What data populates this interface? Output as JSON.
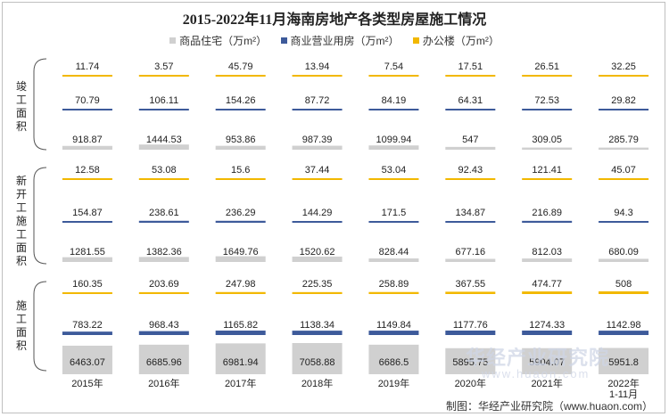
{
  "chart_data": {
    "type": "bar",
    "title": "2015-2022年11月海南房地产各类型房屋施工情况",
    "categories": [
      "2015年",
      "2016年",
      "2017年",
      "2018年",
      "2019年",
      "2020年",
      "2021年",
      "2022年 1-11月"
    ],
    "category_lines": [
      [
        "2015年"
      ],
      [
        "2016年"
      ],
      [
        "2017年"
      ],
      [
        "2018年"
      ],
      [
        "2019年"
      ],
      [
        "2020年"
      ],
      [
        "2021年"
      ],
      [
        "2022年",
        "1-11月"
      ]
    ],
    "legend": [
      {
        "name": "商品住宅（万m²）",
        "color": "#d0d0d0"
      },
      {
        "name": "商业营业用房（万m²）",
        "color": "#3d5a9a"
      },
      {
        "name": "办公楼（万m²）",
        "color": "#f2b800"
      }
    ],
    "groups": [
      {
        "label": "竣工面积",
        "label_chars": [
          "竣",
          "工",
          "面",
          "积"
        ],
        "series": [
          {
            "name": "办公楼（万m²）",
            "values": [
              11.74,
              3.57,
              45.79,
              13.94,
              7.54,
              17.51,
              26.51,
              32.25
            ]
          },
          {
            "name": "商业营业用房（万m²）",
            "values": [
              70.79,
              106.11,
              154.26,
              87.72,
              84.19,
              64.31,
              72.53,
              29.82
            ]
          },
          {
            "name": "商品住宅（万m²）",
            "values": [
              918.87,
              1444.53,
              953.86,
              987.39,
              1099.94,
              547,
              309.05,
              285.79
            ]
          }
        ]
      },
      {
        "label": "新开工施工面积",
        "label_chars": [
          "新",
          "开",
          "工",
          "施",
          "工",
          "面",
          "积"
        ],
        "series": [
          {
            "name": "办公楼（万m²）",
            "values": [
              12.58,
              53.08,
              15.6,
              37.44,
              53.04,
              92.43,
              121.41,
              45.07
            ]
          },
          {
            "name": "商业营业用房（万m²）",
            "values": [
              154.87,
              238.61,
              236.29,
              144.29,
              171.5,
              134.87,
              216.89,
              94.3
            ]
          },
          {
            "name": "商品住宅（万m²）",
            "values": [
              1281.55,
              1382.36,
              1649.76,
              1520.62,
              828.44,
              677.16,
              812.03,
              680.09
            ]
          }
        ]
      },
      {
        "label": "施工面积",
        "label_chars": [
          "施",
          "工",
          "面",
          "积"
        ],
        "series": [
          {
            "name": "办公楼（万m²）",
            "values": [
              160.35,
              203.69,
              247.98,
              225.35,
              258.89,
              367.55,
              474.77,
              508
            ]
          },
          {
            "name": "商业营业用房（万m²）",
            "values": [
              783.22,
              968.43,
              1165.82,
              1138.34,
              1149.84,
              1177.76,
              1274.33,
              1142.98
            ]
          },
          {
            "name": "商品住宅（万m²）",
            "values": [
              6463.07,
              6685.96,
              6981.94,
              7058.88,
              6686.5,
              5895.75,
              5904.07,
              5951.8
            ]
          }
        ]
      }
    ],
    "ylim": [
      0,
      7500
    ]
  },
  "footer": "制图：华经产业研究院（www.huaon.com）",
  "watermark": {
    "text": "华经产业研究院",
    "url": "www.huaon.com"
  }
}
